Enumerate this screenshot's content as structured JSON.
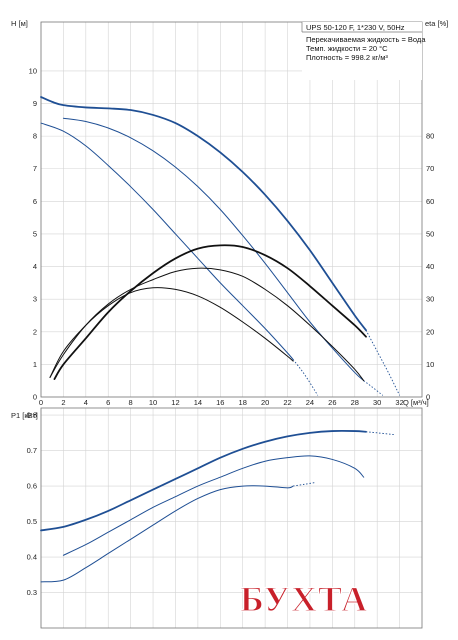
{
  "info": {
    "model": "UPS 50-120 F, 1*230 V, 50Hz",
    "liquid": "Перекачиваемая жидкость = Вода",
    "temp": "Темп. жидкости = 20 °C",
    "density": "Плотность = 998.2 кг/м³"
  },
  "colors": {
    "curve": "#1f4f94",
    "eta": "#111111",
    "grid": "#d4d4d4"
  },
  "chart_data": [
    {
      "type": "line",
      "ylabel": "H [м]",
      "y2label": "eta [%]",
      "xlabel": "Q [м³/ч]",
      "xlim": [
        0,
        34
      ],
      "ylim": [
        0,
        11.5
      ],
      "y2lim": [
        0,
        115
      ],
      "xticks": [
        0,
        2,
        4,
        6,
        8,
        10,
        12,
        14,
        16,
        18,
        20,
        22,
        24,
        26,
        28,
        30,
        32
      ],
      "yticks": [
        0,
        1,
        2,
        3,
        4,
        5,
        6,
        7,
        8,
        9,
        10
      ],
      "y2ticks": [
        0,
        10,
        20,
        30,
        40,
        50,
        60,
        70,
        80
      ],
      "grid": true,
      "series": [
        {
          "kind": "head",
          "color": "#1f4f94",
          "width": 1.8,
          "x": [
            0,
            1,
            2,
            4,
            6,
            8,
            10,
            12,
            14,
            16,
            18,
            20,
            22,
            24,
            26,
            28,
            29
          ],
          "y": [
            9.2,
            9.05,
            8.95,
            8.88,
            8.85,
            8.8,
            8.65,
            8.4,
            8.0,
            7.5,
            6.9,
            6.2,
            5.4,
            4.5,
            3.5,
            2.5,
            2.05
          ],
          "dashed_x": [],
          "dashed_y": []
        },
        {
          "kind": "head",
          "color": "#1f4f94",
          "width": 1.0,
          "x": [
            2,
            4,
            6,
            8,
            10,
            12,
            14,
            16,
            18,
            20,
            22,
            24,
            26,
            28,
            28.8
          ],
          "y": [
            8.55,
            8.45,
            8.25,
            7.95,
            7.55,
            7.05,
            6.45,
            5.75,
            4.95,
            4.1,
            3.2,
            2.3,
            1.5,
            0.75,
            0.5
          ],
          "dashed_x": [
            28.8,
            29.5,
            30.5
          ],
          "dashed_y": [
            0.5,
            0.32,
            0.05
          ]
        },
        {
          "kind": "head",
          "color": "#1f4f94",
          "width": 1.0,
          "x": [
            0,
            2,
            4,
            6,
            8,
            10,
            12,
            14,
            16,
            18,
            20,
            22,
            22.5
          ],
          "y": [
            8.4,
            8.15,
            7.7,
            7.1,
            6.45,
            5.75,
            5.0,
            4.25,
            3.5,
            2.8,
            2.1,
            1.35,
            1.15
          ],
          "dashed_x": [
            22.5,
            23.5,
            24.7
          ],
          "dashed_y": [
            1.15,
            0.7,
            0.05
          ]
        },
        {
          "kind": "head",
          "color": "#1f4f94",
          "width": 1.0,
          "x": [],
          "y": [],
          "dashed_x": [
            29,
            30,
            31,
            32
          ],
          "dashed_y": [
            2.05,
            1.4,
            0.75,
            0.05
          ]
        },
        {
          "kind": "eta",
          "color": "#111111",
          "width": 1.8,
          "x": [
            1.2,
            2,
            4,
            6,
            8,
            10,
            12,
            14,
            16,
            18,
            20,
            22,
            24,
            26,
            28,
            29
          ],
          "y": [
            5.5,
            10,
            18,
            26,
            32.5,
            38,
            42.5,
            45.5,
            46.5,
            46,
            43.5,
            39.5,
            34,
            28,
            22,
            18.5
          ],
          "dashed_x": [],
          "dashed_y": []
        },
        {
          "kind": "eta",
          "color": "#111111",
          "width": 1.0,
          "x": [
            0.8,
            2,
            4,
            6,
            8,
            10,
            12,
            14,
            16,
            18,
            20,
            22,
            24,
            26,
            28,
            28.8
          ],
          "y": [
            6,
            13,
            22,
            28.5,
            33,
            36,
            38.5,
            39.5,
            39,
            37,
            33,
            28,
            22,
            15.5,
            8.5,
            5
          ],
          "dashed_x": [],
          "dashed_y": []
        },
        {
          "kind": "eta",
          "color": "#111111",
          "width": 1.0,
          "x": [
            0.8,
            2,
            4,
            6,
            8,
            10,
            12,
            14,
            16,
            18,
            20,
            22,
            22.5
          ],
          "y": [
            6,
            14,
            22,
            28,
            32,
            33.5,
            33,
            31,
            27.5,
            23,
            18,
            12.5,
            11
          ],
          "dashed_x": [],
          "dashed_y": []
        }
      ]
    },
    {
      "type": "line",
      "ylabel": "P1 [кВт]",
      "xlim": [
        0,
        34
      ],
      "ylim": [
        0.2,
        0.82
      ],
      "yticks": [
        0.3,
        0.4,
        0.5,
        0.6,
        0.7,
        0.8
      ],
      "grid": true,
      "series": [
        {
          "color": "#1f4f94",
          "width": 1.8,
          "x": [
            0,
            2,
            4,
            6,
            8,
            10,
            12,
            14,
            16,
            18,
            20,
            22,
            24,
            26,
            28,
            29
          ],
          "y": [
            0.475,
            0.485,
            0.505,
            0.53,
            0.56,
            0.59,
            0.62,
            0.65,
            0.68,
            0.705,
            0.725,
            0.74,
            0.75,
            0.755,
            0.755,
            0.753
          ],
          "dashed_x": [
            29,
            30,
            31.5
          ],
          "dashed_y": [
            0.753,
            0.75,
            0.745
          ]
        },
        {
          "color": "#1f4f94",
          "width": 1.0,
          "x": [
            2,
            4,
            6,
            8,
            10,
            12,
            14,
            16,
            18,
            20,
            22,
            24,
            26,
            28,
            28.8
          ],
          "y": [
            0.405,
            0.435,
            0.47,
            0.505,
            0.54,
            0.57,
            0.6,
            0.625,
            0.65,
            0.67,
            0.68,
            0.685,
            0.675,
            0.65,
            0.625
          ],
          "dashed_x": [],
          "dashed_y": []
        },
        {
          "color": "#1f4f94",
          "width": 1.0,
          "x": [
            0,
            2,
            4,
            6,
            8,
            10,
            12,
            14,
            16,
            18,
            20,
            22,
            22.5
          ],
          "y": [
            0.33,
            0.335,
            0.37,
            0.41,
            0.45,
            0.49,
            0.53,
            0.565,
            0.59,
            0.6,
            0.6,
            0.595,
            0.6
          ],
          "dashed_x": [
            22.5,
            23.5,
            24.5
          ],
          "dashed_y": [
            0.6,
            0.605,
            0.61
          ]
        }
      ]
    }
  ],
  "watermark": {
    "text": "БУХТА",
    "color": "#c8202a"
  }
}
